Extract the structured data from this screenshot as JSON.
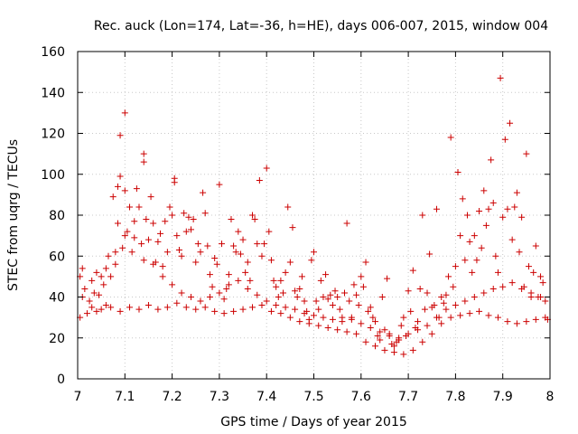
{
  "chart_data": {
    "type": "scatter",
    "title": "Rec. auck (Lon=174, Lat=-36, h=HE), days 006-007, 2015, window 004",
    "xlabel": "GPS time / Days of year 2015",
    "ylabel": "STEC from uqrg / TECUs",
    "xlim": [
      7,
      8
    ],
    "ylim": [
      0,
      160
    ],
    "xticks": [
      7,
      7.1,
      7.2,
      7.3,
      7.4,
      7.5,
      7.6,
      7.7,
      7.8,
      7.9,
      8
    ],
    "xtick_labels": [
      "7",
      "7.1",
      "7.2",
      "7.3",
      "7.4",
      "7.5",
      "7.6",
      "7.7",
      "7.8",
      "7.9",
      "8"
    ],
    "yticks": [
      0,
      20,
      40,
      60,
      80,
      100,
      120,
      140,
      160
    ],
    "ytick_labels": [
      "0",
      "20",
      "40",
      "60",
      "80",
      "100",
      "120",
      "140",
      "160"
    ],
    "grid": true,
    "marker": "+",
    "color": "#cc0000",
    "series": [
      {
        "name": "STEC",
        "points": [
          [
            7.005,
            30
          ],
          [
            7.01,
            40
          ],
          [
            7.005,
            50
          ],
          [
            7.01,
            54
          ],
          [
            7.015,
            44
          ],
          [
            7.02,
            32
          ],
          [
            7.025,
            38
          ],
          [
            7.03,
            48
          ],
          [
            7.035,
            42
          ],
          [
            7.04,
            33
          ],
          [
            7.045,
            41
          ],
          [
            7.05,
            50
          ],
          [
            7.055,
            46
          ],
          [
            7.06,
            36
          ],
          [
            7.065,
            60
          ],
          [
            7.07,
            50
          ],
          [
            7.075,
            89
          ],
          [
            7.08,
            56
          ],
          [
            7.085,
            76
          ],
          [
            7.085,
            94
          ],
          [
            7.09,
            119
          ],
          [
            7.09,
            99
          ],
          [
            7.095,
            64
          ],
          [
            7.1,
            130
          ],
          [
            7.1,
            92
          ],
          [
            7.105,
            72
          ],
          [
            7.11,
            84
          ],
          [
            7.115,
            62
          ],
          [
            7.12,
            77
          ],
          [
            7.125,
            93
          ],
          [
            7.13,
            84
          ],
          [
            7.135,
            66
          ],
          [
            7.14,
            110
          ],
          [
            7.14,
            106
          ],
          [
            7.145,
            78
          ],
          [
            7.15,
            68
          ],
          [
            7.155,
            89
          ],
          [
            7.16,
            76
          ],
          [
            7.165,
            57
          ],
          [
            7.17,
            67
          ],
          [
            7.175,
            71
          ],
          [
            7.18,
            55
          ],
          [
            7.185,
            77
          ],
          [
            7.19,
            62
          ],
          [
            7.195,
            84
          ],
          [
            7.2,
            80
          ],
          [
            7.205,
            96
          ],
          [
            7.205,
            98
          ],
          [
            7.21,
            70
          ],
          [
            7.215,
            63
          ],
          [
            7.22,
            60
          ],
          [
            7.225,
            81
          ],
          [
            7.23,
            72
          ],
          [
            7.235,
            79
          ],
          [
            7.24,
            73
          ],
          [
            7.245,
            78
          ],
          [
            7.25,
            57
          ],
          [
            7.255,
            66
          ],
          [
            7.26,
            62
          ],
          [
            7.265,
            91
          ],
          [
            7.27,
            81
          ],
          [
            7.275,
            65
          ],
          [
            7.28,
            51
          ],
          [
            7.285,
            45
          ],
          [
            7.29,
            59
          ],
          [
            7.295,
            56
          ],
          [
            7.3,
            95
          ],
          [
            7.305,
            66
          ],
          [
            7.31,
            39
          ],
          [
            7.315,
            44
          ],
          [
            7.32,
            51
          ],
          [
            7.325,
            78
          ],
          [
            7.33,
            65
          ],
          [
            7.335,
            62
          ],
          [
            7.34,
            72
          ],
          [
            7.345,
            61
          ],
          [
            7.35,
            68
          ],
          [
            7.355,
            52
          ],
          [
            7.36,
            57
          ],
          [
            7.365,
            48
          ],
          [
            7.37,
            80
          ],
          [
            7.375,
            78
          ],
          [
            7.38,
            66
          ],
          [
            7.385,
            97
          ],
          [
            7.39,
            60
          ],
          [
            7.395,
            66
          ],
          [
            7.4,
            103
          ],
          [
            7.405,
            72
          ],
          [
            7.41,
            58
          ],
          [
            7.415,
            48
          ],
          [
            7.42,
            45
          ],
          [
            7.425,
            40
          ],
          [
            7.43,
            48
          ],
          [
            7.435,
            42
          ],
          [
            7.44,
            52
          ],
          [
            7.445,
            84
          ],
          [
            7.45,
            57
          ],
          [
            7.455,
            74
          ],
          [
            7.46,
            43
          ],
          [
            7.465,
            40
          ],
          [
            7.47,
            44
          ],
          [
            7.475,
            50
          ],
          [
            7.48,
            38
          ],
          [
            7.485,
            33
          ],
          [
            7.49,
            29
          ],
          [
            7.495,
            58
          ],
          [
            7.5,
            62
          ],
          [
            7.505,
            38
          ],
          [
            7.51,
            34
          ],
          [
            7.515,
            48
          ],
          [
            7.52,
            40
          ],
          [
            7.525,
            51
          ],
          [
            7.53,
            39
          ],
          [
            7.535,
            41
          ],
          [
            7.54,
            36
          ],
          [
            7.545,
            43
          ],
          [
            7.55,
            40
          ],
          [
            7.555,
            34
          ],
          [
            7.56,
            30
          ],
          [
            7.565,
            42
          ],
          [
            7.57,
            76
          ],
          [
            7.575,
            38
          ],
          [
            7.58,
            29
          ],
          [
            7.585,
            46
          ],
          [
            7.59,
            41
          ],
          [
            7.595,
            36
          ],
          [
            7.6,
            50
          ],
          [
            7.605,
            45
          ],
          [
            7.61,
            57
          ],
          [
            7.615,
            33
          ],
          [
            7.62,
            35
          ],
          [
            7.625,
            30
          ],
          [
            7.63,
            28
          ],
          [
            7.635,
            21
          ],
          [
            7.64,
            19
          ],
          [
            7.645,
            40
          ],
          [
            7.65,
            24
          ],
          [
            7.655,
            49
          ],
          [
            7.66,
            22
          ],
          [
            7.665,
            17
          ],
          [
            7.67,
            16
          ],
          [
            7.675,
            18
          ],
          [
            7.68,
            20
          ],
          [
            7.685,
            26
          ],
          [
            7.69,
            30
          ],
          [
            7.695,
            21
          ],
          [
            7.7,
            43
          ],
          [
            7.705,
            33
          ],
          [
            7.71,
            53
          ],
          [
            7.715,
            25
          ],
          [
            7.72,
            28
          ],
          [
            7.725,
            44
          ],
          [
            7.73,
            80
          ],
          [
            7.735,
            34
          ],
          [
            7.74,
            42
          ],
          [
            7.745,
            61
          ],
          [
            7.75,
            35
          ],
          [
            7.755,
            36
          ],
          [
            7.76,
            83
          ],
          [
            7.765,
            30
          ],
          [
            7.77,
            40
          ],
          [
            7.775,
            37
          ],
          [
            7.78,
            41
          ],
          [
            7.785,
            50
          ],
          [
            7.79,
            118
          ],
          [
            7.795,
            45
          ],
          [
            7.8,
            55
          ],
          [
            7.805,
            101
          ],
          [
            7.81,
            70
          ],
          [
            7.815,
            88
          ],
          [
            7.82,
            58
          ],
          [
            7.825,
            80
          ],
          [
            7.83,
            67
          ],
          [
            7.835,
            52
          ],
          [
            7.84,
            70
          ],
          [
            7.845,
            58
          ],
          [
            7.85,
            82
          ],
          [
            7.855,
            64
          ],
          [
            7.86,
            92
          ],
          [
            7.865,
            75
          ],
          [
            7.87,
            83
          ],
          [
            7.875,
            107
          ],
          [
            7.88,
            86
          ],
          [
            7.885,
            60
          ],
          [
            7.89,
            52
          ],
          [
            7.895,
            147
          ],
          [
            7.9,
            79
          ],
          [
            7.905,
            117
          ],
          [
            7.91,
            83
          ],
          [
            7.915,
            125
          ],
          [
            7.92,
            68
          ],
          [
            7.925,
            84
          ],
          [
            7.93,
            91
          ],
          [
            7.935,
            62
          ],
          [
            7.94,
            79
          ],
          [
            7.945,
            45
          ],
          [
            7.95,
            110
          ],
          [
            7.955,
            55
          ],
          [
            7.96,
            40
          ],
          [
            7.965,
            52
          ],
          [
            7.97,
            65
          ],
          [
            7.975,
            40
          ],
          [
            7.98,
            50
          ],
          [
            7.985,
            47
          ],
          [
            7.99,
            38
          ],
          [
            7.995,
            29
          ],
          [
            7.03,
            35
          ],
          [
            7.05,
            34
          ],
          [
            7.07,
            35
          ],
          [
            7.09,
            33
          ],
          [
            7.11,
            35
          ],
          [
            7.13,
            34
          ],
          [
            7.15,
            36
          ],
          [
            7.17,
            34
          ],
          [
            7.19,
            35
          ],
          [
            7.21,
            37
          ],
          [
            7.23,
            35
          ],
          [
            7.25,
            34
          ],
          [
            7.27,
            35
          ],
          [
            7.29,
            33
          ],
          [
            7.31,
            32
          ],
          [
            7.33,
            33
          ],
          [
            7.35,
            34
          ],
          [
            7.37,
            35
          ],
          [
            7.39,
            36
          ],
          [
            7.41,
            33
          ],
          [
            7.43,
            32
          ],
          [
            7.45,
            30
          ],
          [
            7.47,
            28
          ],
          [
            7.49,
            27
          ],
          [
            7.51,
            26
          ],
          [
            7.53,
            25
          ],
          [
            7.55,
            24
          ],
          [
            7.57,
            23
          ],
          [
            7.59,
            22
          ],
          [
            7.61,
            18
          ],
          [
            7.63,
            16
          ],
          [
            7.65,
            14
          ],
          [
            7.67,
            13
          ],
          [
            7.69,
            12
          ],
          [
            7.71,
            14
          ],
          [
            7.73,
            18
          ],
          [
            7.75,
            22
          ],
          [
            7.77,
            27
          ],
          [
            7.79,
            30
          ],
          [
            7.81,
            31
          ],
          [
            7.83,
            32
          ],
          [
            7.85,
            33
          ],
          [
            7.87,
            31
          ],
          [
            7.89,
            30
          ],
          [
            7.91,
            28
          ],
          [
            7.93,
            27
          ],
          [
            7.95,
            28
          ],
          [
            7.97,
            29
          ],
          [
            7.99,
            30
          ],
          [
            7.04,
            52
          ],
          [
            7.06,
            54
          ],
          [
            7.08,
            62
          ],
          [
            7.1,
            70
          ],
          [
            7.12,
            69
          ],
          [
            7.14,
            58
          ],
          [
            7.16,
            56
          ],
          [
            7.18,
            50
          ],
          [
            7.2,
            46
          ],
          [
            7.22,
            42
          ],
          [
            7.24,
            40
          ],
          [
            7.26,
            38
          ],
          [
            7.28,
            40
          ],
          [
            7.3,
            42
          ],
          [
            7.32,
            46
          ],
          [
            7.34,
            48
          ],
          [
            7.36,
            44
          ],
          [
            7.38,
            41
          ],
          [
            7.4,
            38
          ],
          [
            7.42,
            36
          ],
          [
            7.44,
            35
          ],
          [
            7.46,
            34
          ],
          [
            7.48,
            32
          ],
          [
            7.5,
            31
          ],
          [
            7.52,
            30
          ],
          [
            7.54,
            29
          ],
          [
            7.56,
            28
          ],
          [
            7.58,
            30
          ],
          [
            7.6,
            27
          ],
          [
            7.62,
            25
          ],
          [
            7.64,
            23
          ],
          [
            7.66,
            21
          ],
          [
            7.68,
            19
          ],
          [
            7.7,
            22
          ],
          [
            7.72,
            24
          ],
          [
            7.74,
            26
          ],
          [
            7.76,
            30
          ],
          [
            7.78,
            34
          ],
          [
            7.8,
            36
          ],
          [
            7.82,
            38
          ],
          [
            7.84,
            40
          ],
          [
            7.86,
            42
          ],
          [
            7.88,
            44
          ],
          [
            7.9,
            45
          ],
          [
            7.92,
            47
          ],
          [
            7.94,
            44
          ],
          [
            7.96,
            42
          ],
          [
            7.98,
            40
          ]
        ]
      }
    ]
  }
}
